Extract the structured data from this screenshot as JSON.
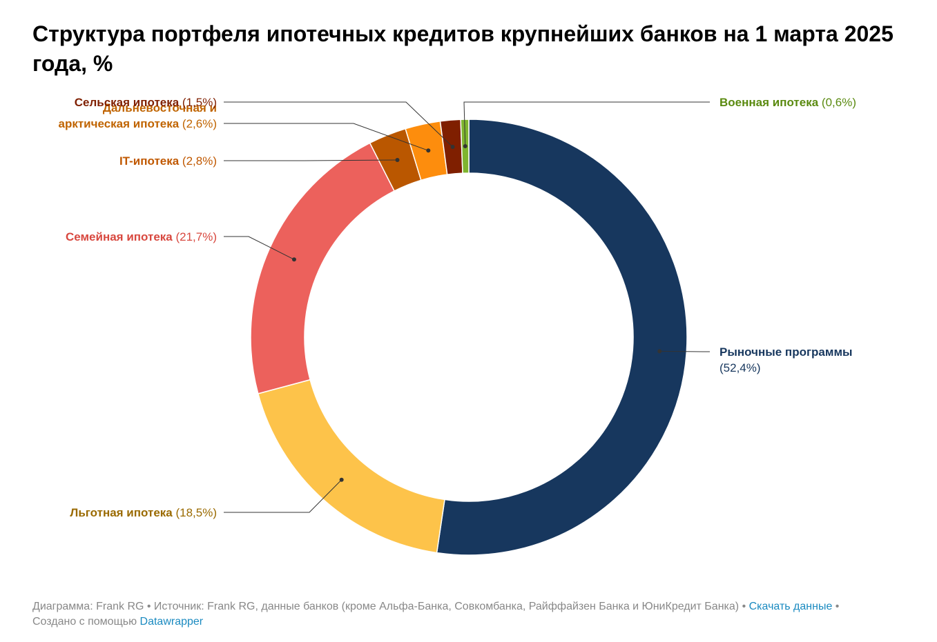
{
  "title": "Структура портфеля ипотечных кредитов крупнейших банков на 1 марта 2025 года, %",
  "chart_data": {
    "type": "pie",
    "donut": true,
    "slices": [
      {
        "name": "Рыночные программы",
        "value": 52.4,
        "display": "(52,4%)",
        "color": "#17375e",
        "label_color": "#17375e"
      },
      {
        "name": "Льготная ипотека",
        "value": 18.5,
        "display": "(18,5%)",
        "color": "#fdc34a",
        "label_color": "#9a6a00"
      },
      {
        "name": "Семейная ипотека",
        "value": 21.7,
        "display": "(21,7%)",
        "color": "#ec615c",
        "label_color": "#d8483f"
      },
      {
        "name": "IT-ипотека",
        "value": 2.8,
        "display": "(2,8%)",
        "color": "#ba5700",
        "label_color": "#c05800"
      },
      {
        "name": "Дальневосточная и арктическая ипотека",
        "lines": [
          "Дальневосточная и",
          "арктическая ипотека"
        ],
        "value": 2.6,
        "display": "(2,6%)",
        "color": "#fd8d0d",
        "label_color": "#c06400"
      },
      {
        "name": "Сельская ипотека",
        "value": 1.5,
        "display": "(1,5%)",
        "color": "#7f1f00",
        "label_color": "#7f1f00"
      },
      {
        "name": "Военная ипотека",
        "value": 0.6,
        "display": "(0,6%)",
        "color": "#7fb52f",
        "label_color": "#5a8a10"
      }
    ]
  },
  "footer": {
    "source": "Диаграмма: Frank RG • Источник: Frank RG, данные банков (кроме Альфа-Банка, Совкомбанка, Райффайзен Банка и ЮниКредит Банка) • ",
    "download_label": "Скачать данные",
    "sep": " •",
    "created": "Создано с помощью ",
    "datawrapper_label": "Datawrapper"
  }
}
